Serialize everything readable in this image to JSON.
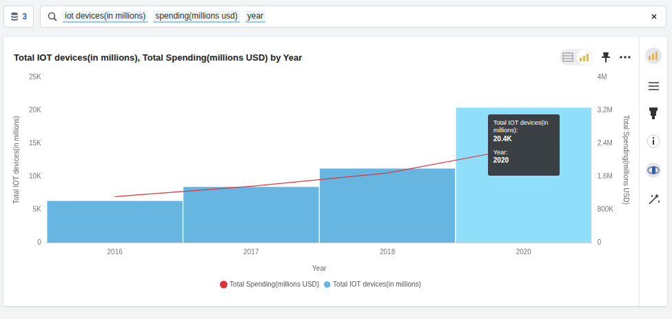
{
  "search": {
    "source_count": 3,
    "tokens": [
      "iot devices(in millions)",
      "spending(millions usd)",
      "year"
    ]
  },
  "chart_data": {
    "type": "bar",
    "title": "Total IOT devices(in millions), Total Spending(millions USD) by Year",
    "x_label": "Year",
    "y_label": "Total IOT devices(in millions)",
    "y2_label": "Total Spending(millions USD)",
    "categories": [
      "2016",
      "2017",
      "2018",
      "2020"
    ],
    "series": [
      {
        "name": "Total IOT devices(in millions)",
        "type": "bar",
        "color": "#67b6e1",
        "colors": [
          "#67b6e1",
          "#67b6e1",
          "#67b6e1",
          "#8fdffb"
        ],
        "values": [
          6300,
          8400,
          11200,
          20400
        ]
      },
      {
        "name": "Total Spending(millions USD)",
        "type": "line",
        "axis": "y2",
        "color": "#d9363e",
        "values": [
          1110000,
          1360000,
          1680000,
          2300000
        ]
      }
    ],
    "ylim": [
      0,
      25000
    ],
    "yticks": [
      0,
      {
        "value": 5000,
        "label": "5K"
      },
      {
        "value": 10000,
        "label": "10K"
      },
      {
        "value": 15000,
        "label": "15K"
      },
      {
        "value": 20000,
        "label": "20K"
      },
      {
        "value": 25000,
        "label": "25K"
      }
    ],
    "y2lim": [
      0,
      4000000
    ],
    "y2ticks": [
      0,
      {
        "value": 800000,
        "label": "800K"
      },
      {
        "value": 1600000,
        "label": "1.6M"
      },
      {
        "value": 2400000,
        "label": "2.4M"
      },
      {
        "value": 3200000,
        "label": "3.2M"
      },
      {
        "value": 4000000,
        "label": "4M"
      }
    ],
    "grid": false,
    "legend": "bottom",
    "tooltip": [
      {
        "label": "Total IOT devices(in millions):",
        "value": "20.4K"
      },
      {
        "label": "Year:",
        "value": "2020"
      }
    ]
  }
}
